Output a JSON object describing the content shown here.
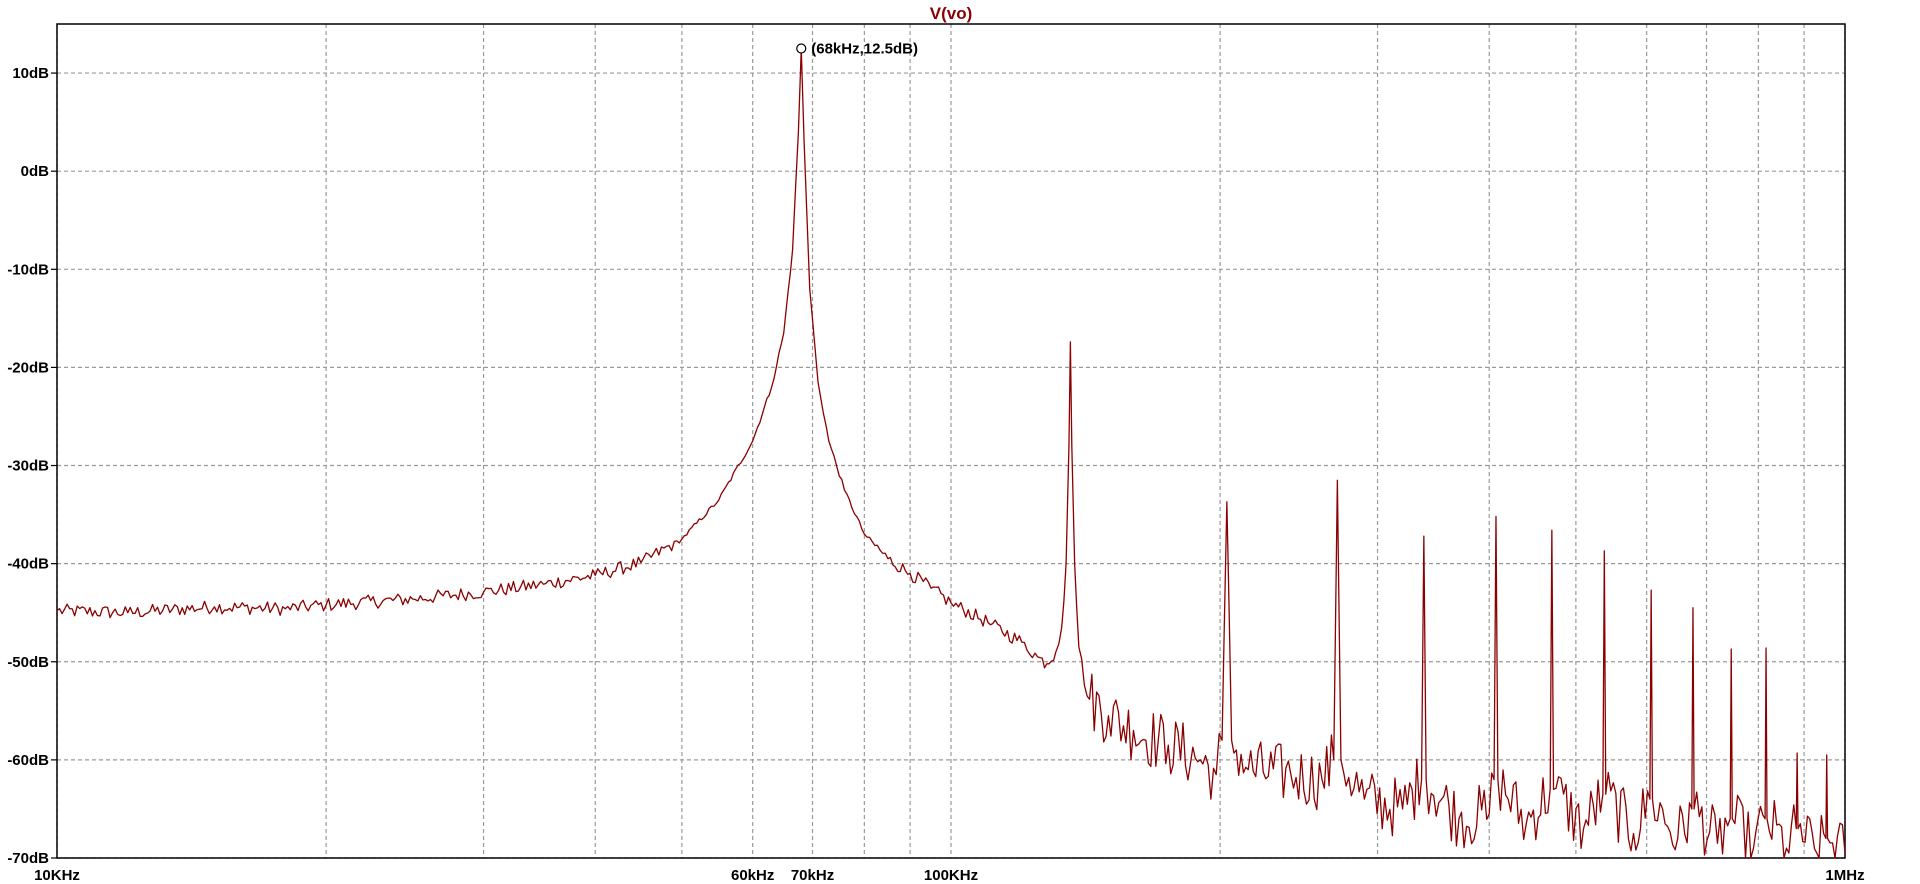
{
  "chart_data": {
    "type": "line",
    "title": "V(vo)",
    "x_scale": "log",
    "xlim_hz": [
      10000,
      1000000
    ],
    "ylim_db": [
      -70,
      15
    ],
    "grid": true,
    "grid_style": "dashed",
    "background": "#ffffff",
    "trace_color": "#8b0000",
    "title_color": "#8b0000",
    "grid_color": "#9a9a9a",
    "y_ticks": [
      {
        "value": 10,
        "label": "10dB"
      },
      {
        "value": 0,
        "label": "0dB"
      },
      {
        "value": -10,
        "label": "-10dB"
      },
      {
        "value": -20,
        "label": "-20dB"
      },
      {
        "value": -30,
        "label": "-30dB"
      },
      {
        "value": -40,
        "label": "-40dB"
      },
      {
        "value": -50,
        "label": "-50dB"
      },
      {
        "value": -60,
        "label": "-60dB"
      },
      {
        "value": -70,
        "label": "-70dB"
      }
    ],
    "x_gridlines_hz": [
      10000,
      20000,
      30000,
      40000,
      50000,
      60000,
      70000,
      80000,
      90000,
      100000,
      200000,
      300000,
      400000,
      500000,
      600000,
      700000,
      800000,
      900000,
      1000000
    ],
    "x_tick_labels": [
      {
        "value": 10000,
        "label": "10KHz"
      },
      {
        "value": 60000,
        "label": "60kHz"
      },
      {
        "value": 70000,
        "label": "70kHz"
      },
      {
        "value": 100000,
        "label": "100KHz"
      },
      {
        "value": 1000000,
        "label": "1MHz"
      }
    ],
    "annotation": {
      "x": 68000,
      "y": 12.5,
      "label": "(68kHz,12.5dB)"
    },
    "series": [
      {
        "points": [
          [
            10000,
            -44.8
          ],
          [
            12000,
            -45.0
          ],
          [
            15000,
            -44.4
          ],
          [
            18000,
            -44.6
          ],
          [
            20000,
            -44.2
          ],
          [
            25000,
            -43.6
          ],
          [
            30000,
            -42.9
          ],
          [
            35000,
            -42.1
          ],
          [
            40000,
            -41.2
          ],
          [
            45000,
            -39.9
          ],
          [
            50000,
            -37.5
          ],
          [
            55000,
            -33.5
          ],
          [
            60000,
            -27.5
          ],
          [
            63000,
            -22.0
          ],
          [
            65000,
            -16.5
          ],
          [
            66500,
            -8.0
          ],
          [
            67500,
            4.0
          ],
          [
            68000,
            12.5
          ],
          [
            68500,
            3.0
          ],
          [
            69500,
            -12.0
          ],
          [
            71000,
            -21.5
          ],
          [
            73000,
            -27.5
          ],
          [
            76000,
            -32.5
          ],
          [
            80000,
            -37.0
          ],
          [
            85000,
            -39.5
          ],
          [
            90000,
            -41.0
          ],
          [
            95000,
            -42.5
          ],
          [
            100000,
            -44.0
          ],
          [
            110000,
            -46.0
          ],
          [
            120000,
            -48.0
          ],
          [
            125000,
            -49.5
          ],
          [
            128000,
            -50.2
          ],
          [
            131000,
            -49.0
          ],
          [
            133000,
            -46.5
          ],
          [
            134500,
            -40.0
          ],
          [
            135500,
            -28.0
          ],
          [
            136000,
            -17.4
          ],
          [
            136500,
            -28.0
          ],
          [
            137500,
            -40.0
          ],
          [
            139000,
            -48.5
          ],
          [
            142000,
            -53.5
          ],
          [
            150000,
            -55.5
          ],
          [
            160000,
            -57.0
          ],
          [
            175000,
            -58.5
          ],
          [
            190000,
            -60.0
          ],
          [
            198000,
            -61.5
          ],
          [
            201000,
            -58.0
          ],
          [
            203500,
            -33.7
          ],
          [
            206000,
            -58.0
          ],
          [
            215000,
            -61.0
          ],
          [
            240000,
            -61.5
          ],
          [
            260000,
            -62.0
          ],
          [
            268000,
            -60.0
          ],
          [
            270500,
            -31.5
          ],
          [
            273000,
            -60.0
          ],
          [
            290000,
            -64.0
          ],
          [
            320000,
            -65.0
          ],
          [
            336000,
            -62.0
          ],
          [
            338000,
            -37.2
          ],
          [
            340000,
            -62.0
          ],
          [
            370000,
            -66.0
          ],
          [
            400000,
            -65.5
          ],
          [
            405000,
            -62.0
          ],
          [
            407000,
            -35.2
          ],
          [
            409000,
            -62.0
          ],
          [
            440000,
            -66.5
          ],
          [
            468000,
            -63.0
          ],
          [
            470000,
            -36.6
          ],
          [
            472000,
            -63.0
          ],
          [
            510000,
            -67.0
          ],
          [
            536000,
            -63.5
          ],
          [
            538000,
            -38.7
          ],
          [
            540000,
            -63.5
          ],
          [
            580000,
            -67.5
          ],
          [
            605000,
            -64.0
          ],
          [
            607000,
            -42.7
          ],
          [
            609000,
            -64.0
          ],
          [
            650000,
            -68.0
          ],
          [
            674000,
            -65.0
          ],
          [
            676000,
            -44.5
          ],
          [
            678000,
            -65.0
          ],
          [
            720000,
            -68.5
          ],
          [
            744000,
            -66.0
          ],
          [
            746000,
            -48.7
          ],
          [
            748000,
            -66.0
          ],
          [
            790000,
            -69.0
          ],
          [
            814000,
            -66.0
          ],
          [
            816000,
            -48.6
          ],
          [
            818000,
            -66.0
          ],
          [
            860000,
            -69.0
          ],
          [
            882000,
            -67.0
          ],
          [
            884000,
            -59.3
          ],
          [
            886000,
            -67.0
          ],
          [
            930000,
            -69.5
          ],
          [
            952000,
            -68.0
          ],
          [
            954000,
            -59.5
          ],
          [
            956000,
            -68.0
          ],
          [
            1000000,
            -69.5
          ]
        ]
      }
    ]
  }
}
